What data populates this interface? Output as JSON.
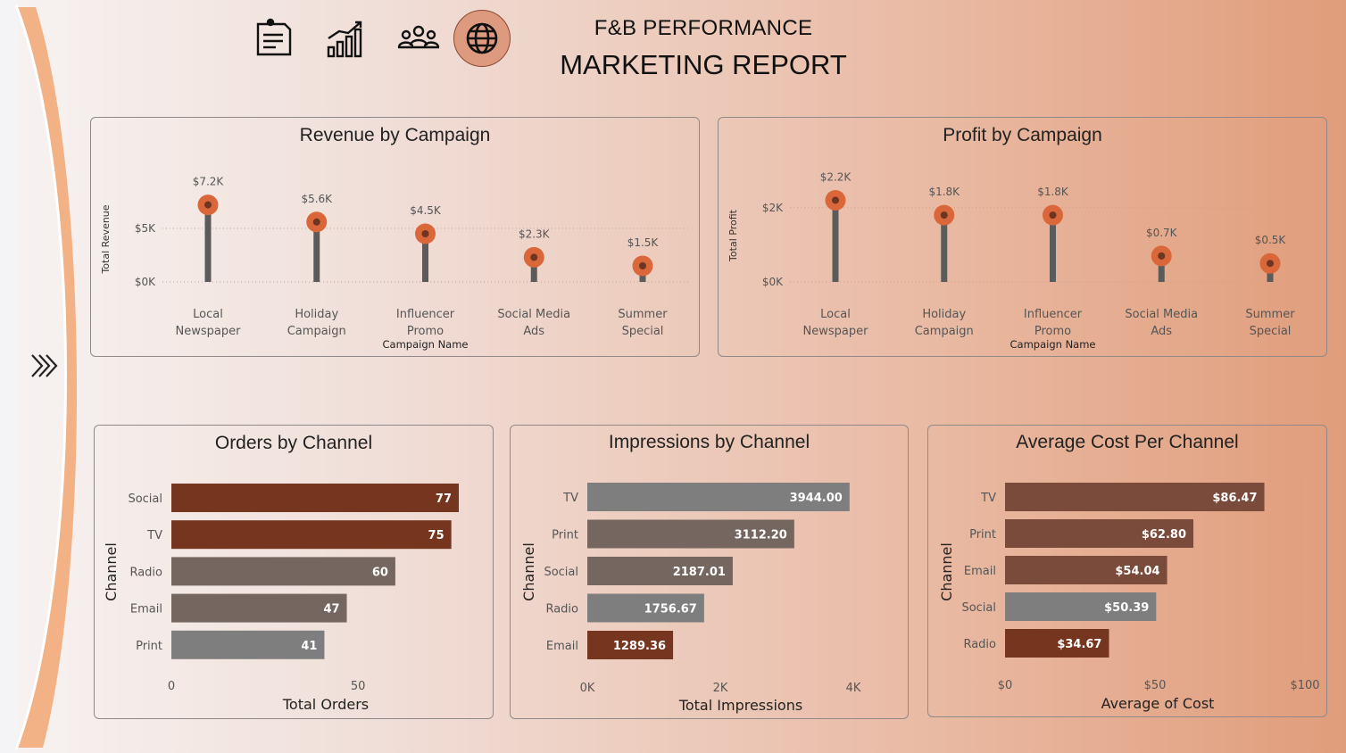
{
  "header": {
    "title_line1": "F&B PERFORMANCE",
    "title_line2": "MARKETING REPORT",
    "nav": [
      {
        "icon": "clipboard-icon",
        "active": false
      },
      {
        "icon": "bar-growth-icon",
        "active": false
      },
      {
        "icon": "people-icon",
        "active": false
      },
      {
        "icon": "globe-icon",
        "active": true
      }
    ]
  },
  "side_panel": {
    "expand_icon": "chevrons-right-icon"
  },
  "colors": {
    "accent_orange": "#d9673a",
    "stem_gray": "#5b5b5b",
    "bar_dark_brown": "#76351f",
    "bar_brown": "#7a4a3a",
    "bar_taupe": "#756760",
    "bar_gray": "#7e7e7e"
  },
  "chart_data": [
    {
      "id": "revenue",
      "type": "lollipop",
      "title": "Revenue by Campaign",
      "xlabel": "Campaign Name",
      "ylabel": "Total Revenue",
      "categories": [
        "Local Newspaper",
        "Holiday Campaign",
        "Influencer Promo",
        "Social Media Ads",
        "Summer Special"
      ],
      "category_lines": [
        [
          "Local",
          "Newspaper"
        ],
        [
          "Holiday",
          "Campaign"
        ],
        [
          "Influencer",
          "Promo"
        ],
        [
          "Social Media",
          "Ads"
        ],
        [
          "Summer",
          "Special"
        ]
      ],
      "values": [
        7.2,
        5.6,
        4.5,
        2.3,
        1.5
      ],
      "data_labels": [
        "$7.2K",
        "$5.6K",
        "$4.5K",
        "$2.3K",
        "$1.5K"
      ],
      "yticks": [
        0,
        5
      ],
      "ytick_labels": [
        "$0K",
        "$5K"
      ],
      "ylim": [
        0,
        8
      ],
      "grid": true
    },
    {
      "id": "profit",
      "type": "lollipop",
      "title": "Profit by Campaign",
      "xlabel": "Campaign Name",
      "ylabel": "Total Profit",
      "categories": [
        "Local Newspaper",
        "Holiday Campaign",
        "Influencer Promo",
        "Social Media Ads",
        "Summer Special"
      ],
      "category_lines": [
        [
          "Local",
          "Newspaper"
        ],
        [
          "Holiday",
          "Campaign"
        ],
        [
          "Influencer",
          "Promo"
        ],
        [
          "Social Media",
          "Ads"
        ],
        [
          "Summer",
          "Special"
        ]
      ],
      "values": [
        2.2,
        1.8,
        1.8,
        0.7,
        0.5
      ],
      "data_labels": [
        "$2.2K",
        "$1.8K",
        "$1.8K",
        "$0.7K",
        "$0.5K"
      ],
      "yticks": [
        0,
        2
      ],
      "ytick_labels": [
        "$0K",
        "$2K"
      ],
      "ylim": [
        0,
        2.5
      ],
      "grid": true
    },
    {
      "id": "orders",
      "type": "bar",
      "orientation": "horizontal",
      "title": "Orders by Channel",
      "xlabel": "Total Orders",
      "ylabel": "Channel",
      "categories": [
        "Social",
        "TV",
        "Radio",
        "Email",
        "Print"
      ],
      "values": [
        77,
        75,
        60,
        47,
        41
      ],
      "data_labels": [
        "77",
        "75",
        "60",
        "47",
        "41"
      ],
      "bar_colors": [
        "#76351f",
        "#76351f",
        "#756760",
        "#756760",
        "#7e7e7e"
      ],
      "xticks": [
        0,
        50
      ],
      "xtick_labels": [
        "0",
        "50"
      ],
      "xlim": [
        0,
        77
      ]
    },
    {
      "id": "impressions",
      "type": "bar",
      "orientation": "horizontal",
      "title": "Impressions by Channel",
      "xlabel": "Total Impressions",
      "ylabel": "Channel",
      "categories": [
        "TV",
        "Print",
        "Social",
        "Radio",
        "Email"
      ],
      "values": [
        3944.0,
        3112.2,
        2187.01,
        1756.67,
        1289.36
      ],
      "data_labels": [
        "3944.00",
        "3112.20",
        "2187.01",
        "1756.67",
        "1289.36"
      ],
      "bar_colors": [
        "#7e7e7e",
        "#756760",
        "#756760",
        "#7e7e7e",
        "#76351f"
      ],
      "xticks": [
        0,
        2000,
        4000
      ],
      "xtick_labels": [
        "0K",
        "2K",
        "4K"
      ],
      "xlim": [
        0,
        4000
      ]
    },
    {
      "id": "avgcost",
      "type": "bar",
      "orientation": "horizontal",
      "title": "Average Cost Per Channel",
      "xlabel": "Average of Cost",
      "ylabel": "Channel",
      "categories": [
        "TV",
        "Print",
        "Email",
        "Social",
        "Radio"
      ],
      "values": [
        86.47,
        62.8,
        54.04,
        50.39,
        34.67
      ],
      "data_labels": [
        "$86.47",
        "$62.80",
        "$54.04",
        "$50.39",
        "$34.67"
      ],
      "bar_colors": [
        "#7a4a3a",
        "#7a4a3a",
        "#7a4a3a",
        "#7e7e7e",
        "#76351f"
      ],
      "xticks": [
        0,
        50,
        100
      ],
      "xtick_labels": [
        "$0",
        "$50",
        "$100"
      ],
      "xlim": [
        0,
        100
      ],
      "grid": true
    }
  ]
}
